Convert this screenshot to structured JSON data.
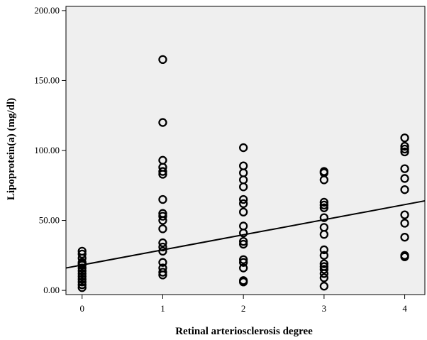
{
  "chart_data": {
    "type": "scatter",
    "title": "",
    "xlabel": "Retinal arteriosclerosis degree",
    "ylabel": "Lipoprotein(a) (mg/dl)",
    "xlim": [
      -0.2,
      4.25
    ],
    "ylim": [
      -3,
      203
    ],
    "x_ticks": [
      0,
      1,
      2,
      3,
      4
    ],
    "x_tick_labels": [
      "0",
      "1",
      "2",
      "3",
      "4"
    ],
    "y_ticks": [
      0,
      50,
      100,
      150,
      200
    ],
    "y_tick_labels": [
      "0.00",
      "50.00",
      "100.00",
      "150.00",
      "200.00"
    ],
    "grid": false,
    "plot_background": "#efefef",
    "marker_color": "#000000",
    "points": [
      [
        0,
        2
      ],
      [
        0,
        4
      ],
      [
        0,
        6
      ],
      [
        0,
        8
      ],
      [
        0,
        10
      ],
      [
        0,
        12
      ],
      [
        0,
        14
      ],
      [
        0,
        16
      ],
      [
        0,
        18
      ],
      [
        0,
        19
      ],
      [
        0,
        20
      ],
      [
        0,
        23
      ],
      [
        0,
        26
      ],
      [
        0,
        28
      ],
      [
        1,
        165
      ],
      [
        1,
        120
      ],
      [
        1,
        93
      ],
      [
        1,
        88
      ],
      [
        1,
        85
      ],
      [
        1,
        83
      ],
      [
        1,
        65
      ],
      [
        1,
        55
      ],
      [
        1,
        53
      ],
      [
        1,
        50
      ],
      [
        1,
        44
      ],
      [
        1,
        34
      ],
      [
        1,
        31
      ],
      [
        1,
        28
      ],
      [
        1,
        20
      ],
      [
        1,
        16
      ],
      [
        1,
        13
      ],
      [
        1,
        11
      ],
      [
        2,
        102
      ],
      [
        2,
        89
      ],
      [
        2,
        84
      ],
      [
        2,
        79
      ],
      [
        2,
        74
      ],
      [
        2,
        65
      ],
      [
        2,
        62
      ],
      [
        2,
        56
      ],
      [
        2,
        46
      ],
      [
        2,
        41
      ],
      [
        2,
        35
      ],
      [
        2,
        33
      ],
      [
        2,
        22
      ],
      [
        2,
        20
      ],
      [
        2,
        16
      ],
      [
        2,
        7
      ],
      [
        2,
        6
      ],
      [
        3,
        85
      ],
      [
        3,
        84
      ],
      [
        3,
        79
      ],
      [
        3,
        63
      ],
      [
        3,
        61
      ],
      [
        3,
        59
      ],
      [
        3,
        52
      ],
      [
        3,
        45
      ],
      [
        3,
        40
      ],
      [
        3,
        29
      ],
      [
        3,
        25
      ],
      [
        3,
        19
      ],
      [
        3,
        17
      ],
      [
        3,
        15
      ],
      [
        3,
        12
      ],
      [
        3,
        9
      ],
      [
        3,
        3
      ],
      [
        4,
        109
      ],
      [
        4,
        103
      ],
      [
        4,
        101
      ],
      [
        4,
        99
      ],
      [
        4,
        87
      ],
      [
        4,
        80
      ],
      [
        4,
        72
      ],
      [
        4,
        54
      ],
      [
        4,
        48
      ],
      [
        4,
        38
      ],
      [
        4,
        25
      ],
      [
        4,
        24
      ]
    ],
    "fit_line": {
      "x": [
        -0.2,
        4.25
      ],
      "y": [
        16,
        64
      ]
    }
  }
}
